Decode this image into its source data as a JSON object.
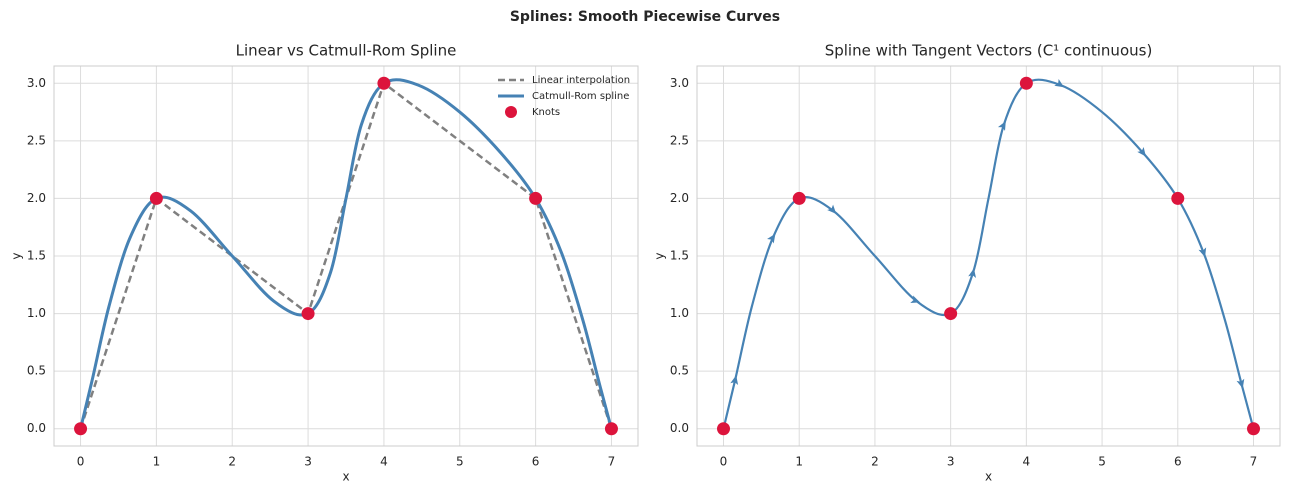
{
  "title": "Splines: Smooth Piecewise Curves",
  "chart_data": [
    {
      "type": "line",
      "title": "Linear vs Catmull-Rom Spline",
      "xlabel": "x",
      "ylabel": "y",
      "xlim": [
        -0.35,
        7.35
      ],
      "ylim": [
        -0.15,
        3.15
      ],
      "xticks": [
        0,
        1,
        2,
        3,
        4,
        5,
        6,
        7
      ],
      "yticks": [
        {
          "value": 0,
          "label": "0.0"
        },
        {
          "value": 0.5,
          "label": "0.5"
        },
        {
          "value": 1,
          "label": "1.0"
        },
        {
          "value": 1.5,
          "label": "1.5"
        },
        {
          "value": 2,
          "label": "2.0"
        },
        {
          "value": 2.5,
          "label": "2.5"
        },
        {
          "value": 3,
          "label": "3.0"
        }
      ],
      "grid": true,
      "legend": "upper right",
      "series": [
        {
          "name": "Linear interpolation",
          "kind": "line",
          "dash": true,
          "width": 2.5,
          "color": "#808080",
          "x": [
            0,
            1,
            3,
            4,
            6,
            7
          ],
          "values": [
            0,
            2,
            1,
            3,
            2,
            0
          ]
        },
        {
          "name": "Catmull-Rom spline",
          "kind": "line",
          "width": 3,
          "color": "#4682b4",
          "x": [
            0,
            0.156,
            0.375,
            0.656,
            1,
            1.453,
            2,
            2.547,
            3,
            3.297,
            3.5,
            3.703,
            4,
            4.453,
            5,
            5.547,
            6,
            6.344,
            6.625,
            6.844,
            7
          ],
          "values": [
            0,
            0.43,
            1.063,
            1.664,
            2,
            1.891,
            1.5,
            1.109,
            1,
            1.359,
            2,
            2.641,
            3,
            2.984,
            2.75,
            2.391,
            2,
            1.523,
            0.938,
            0.383,
            0
          ]
        },
        {
          "name": "Knots",
          "kind": "scatter",
          "color": "#dc143c",
          "x": [
            0,
            1,
            3,
            4,
            6,
            7
          ],
          "values": [
            0,
            2,
            1,
            3,
            2,
            0
          ]
        }
      ]
    },
    {
      "type": "line",
      "title": "Spline with Tangent Vectors (C¹ continuous)",
      "xlabel": "x",
      "ylabel": "y",
      "xlim": [
        -0.35,
        7.35
      ],
      "ylim": [
        -0.15,
        3.15
      ],
      "xticks": [
        0,
        1,
        2,
        3,
        4,
        5,
        6,
        7
      ],
      "yticks": [
        {
          "value": 0,
          "label": "0.0"
        },
        {
          "value": 0.5,
          "label": "0.5"
        },
        {
          "value": 1,
          "label": "1.0"
        },
        {
          "value": 1.5,
          "label": "1.5"
        },
        {
          "value": 2,
          "label": "2.0"
        },
        {
          "value": 2.5,
          "label": "2.5"
        },
        {
          "value": 3,
          "label": "3.0"
        }
      ],
      "grid": true,
      "series": [
        {
          "kind": "line",
          "width": 2.2,
          "color": "#4682b4",
          "markers": "arrow",
          "x": [
            0,
            0.156,
            0.375,
            0.656,
            1,
            1.453,
            2,
            2.547,
            3,
            3.297,
            3.5,
            3.703,
            4,
            4.453,
            5,
            5.547,
            6,
            6.344,
            6.625,
            6.844,
            7
          ],
          "values": [
            0,
            0.43,
            1.063,
            1.664,
            2,
            1.891,
            1.5,
            1.109,
            1,
            1.359,
            2,
            2.641,
            3,
            2.984,
            2.75,
            2.391,
            2,
            1.523,
            0.938,
            0.383,
            0
          ]
        },
        {
          "kind": "scatter",
          "color": "#dc143c",
          "x": [
            0,
            1,
            3,
            4,
            6,
            7
          ],
          "values": [
            0,
            2,
            1,
            3,
            2,
            0
          ]
        }
      ]
    }
  ]
}
